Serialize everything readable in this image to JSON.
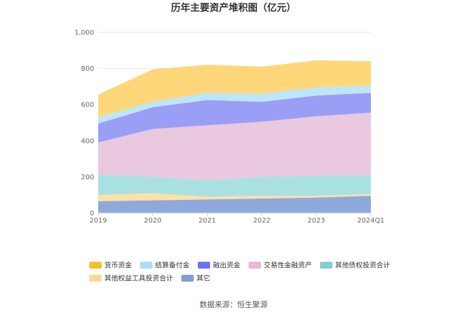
{
  "chart_data": {
    "type": "area",
    "stacked": true,
    "title": "历年主要资产堆积图（亿元）",
    "categories": [
      "2019",
      "2020",
      "2021",
      "2022",
      "2023",
      "2024Q1"
    ],
    "ylim": [
      0,
      1000
    ],
    "yticks": [
      "0",
      "200",
      "400",
      "600",
      "800",
      "1,000"
    ],
    "grid": true,
    "legend_position": "bottom",
    "series": [
      {
        "name": "其它",
        "color": "#8fa9dc",
        "values": [
          65,
          70,
          75,
          80,
          85,
          95
        ]
      },
      {
        "name": "其他权益工具投资合计",
        "color": "#fde0a8",
        "values": [
          35,
          40,
          15,
          15,
          10,
          10
        ]
      },
      {
        "name": "其他债权投资合计",
        "color": "#a9e1e2",
        "values": [
          115,
          90,
          90,
          105,
          110,
          105
        ]
      },
      {
        "name": "交易性金融资产",
        "color": "#eac8e0",
        "values": [
          175,
          265,
          305,
          305,
          330,
          345
        ]
      },
      {
        "name": "融出资金",
        "color": "#9b9ef5",
        "values": [
          105,
          120,
          140,
          110,
          115,
          110
        ]
      },
      {
        "name": "结算备付金",
        "color": "#bde5fb",
        "values": [
          35,
          30,
          40,
          45,
          45,
          40
        ]
      },
      {
        "name": "货币资金",
        "color": "#fdd77a",
        "values": [
          125,
          180,
          155,
          150,
          150,
          135
        ]
      }
    ],
    "legend_order": [
      "货币资金",
      "结算备付金",
      "融出资金",
      "交易性金融资产",
      "其他债权投资合计",
      "其他权益工具投资合计",
      "其它"
    ],
    "legend_colors": [
      "#f9bf2a",
      "#a8ddfb",
      "#6c73ec",
      "#e7b8d8",
      "#7fd2d4",
      "#fcd79b",
      "#7fa0d8"
    ]
  },
  "source_text": "数据来源：恒生聚源"
}
